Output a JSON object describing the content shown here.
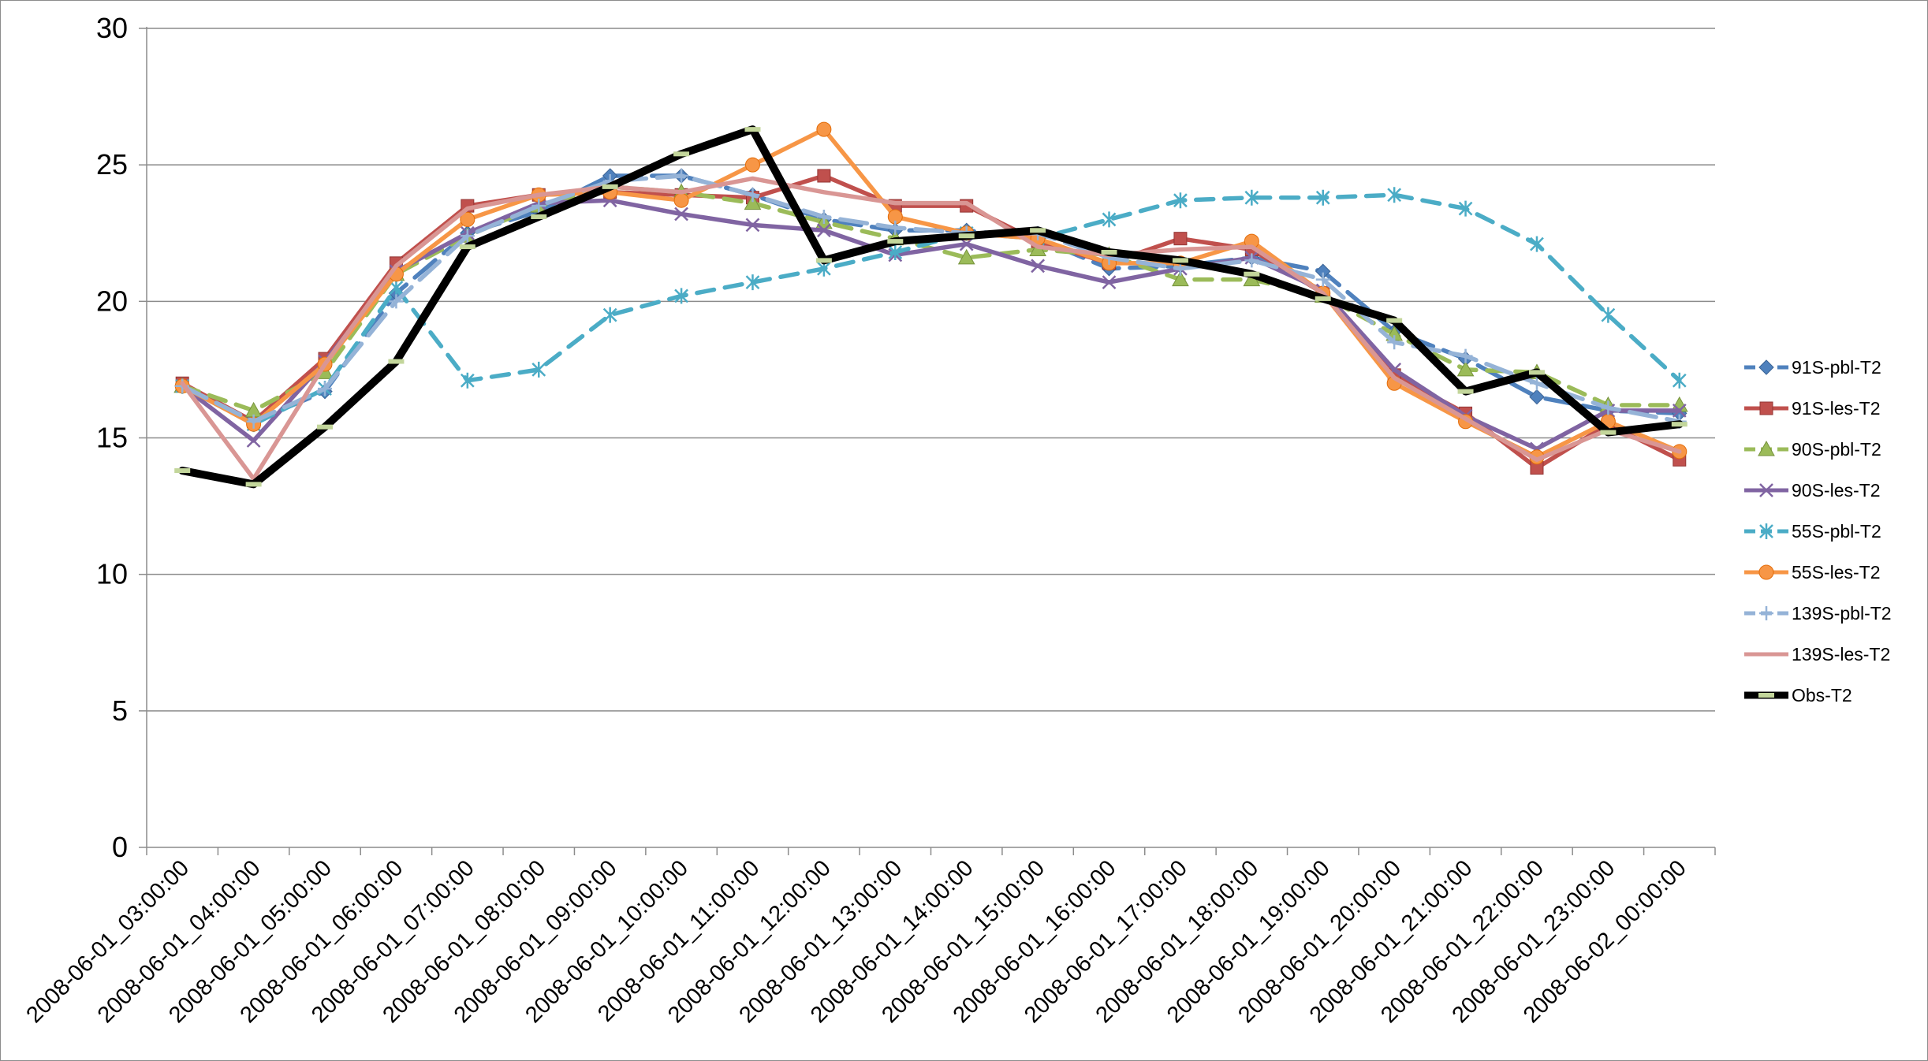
{
  "chart_data": {
    "type": "line",
    "title": "",
    "xlabel": "",
    "ylabel": "",
    "ylim": [
      0,
      30
    ],
    "yticks": [
      0,
      5,
      10,
      15,
      20,
      25,
      30
    ],
    "grid": "horizontal",
    "legend_position": "right",
    "categories": [
      "2008-06-01_03:00:00",
      "2008-06-01_04:00:00",
      "2008-06-01_05:00:00",
      "2008-06-01_06:00:00",
      "2008-06-01_07:00:00",
      "2008-06-01_08:00:00",
      "2008-06-01_09:00:00",
      "2008-06-01_10:00:00",
      "2008-06-01_11:00:00",
      "2008-06-01_12:00:00",
      "2008-06-01_13:00:00",
      "2008-06-01_14:00:00",
      "2008-06-01_15:00:00",
      "2008-06-01_16:00:00",
      "2008-06-01_17:00:00",
      "2008-06-01_18:00:00",
      "2008-06-01_19:00:00",
      "2008-06-01_20:00:00",
      "2008-06-01_21:00:00",
      "2008-06-01_22:00:00",
      "2008-06-01_23:00:00",
      "2008-06-02_00:00:00"
    ],
    "series": [
      {
        "name": "91S-pbl-T2",
        "color": "#4f81bd",
        "marker": "diamond",
        "dash": "long-dash",
        "values": [
          16.9,
          15.6,
          16.7,
          20.3,
          22.5,
          23.3,
          24.6,
          24.6,
          23.9,
          23.0,
          22.6,
          22.6,
          22.3,
          21.2,
          21.3,
          21.6,
          21.1,
          18.9,
          17.9,
          16.5,
          16.0,
          15.9
        ]
      },
      {
        "name": "91S-les-T2",
        "color": "#c0504d",
        "marker": "square",
        "dash": "solid",
        "values": [
          17.0,
          15.6,
          17.9,
          21.4,
          23.5,
          23.9,
          24.0,
          23.9,
          23.8,
          24.6,
          23.5,
          23.5,
          22.2,
          21.4,
          22.3,
          21.9,
          20.3,
          17.3,
          15.9,
          13.9,
          15.5,
          14.2
        ]
      },
      {
        "name": "90S-pbl-T2",
        "color": "#9bbb59",
        "marker": "triangle",
        "dash": "dash",
        "values": [
          16.9,
          16.0,
          17.4,
          21.0,
          22.4,
          23.5,
          24.2,
          24.0,
          23.6,
          22.9,
          22.3,
          21.6,
          21.9,
          21.7,
          20.8,
          20.8,
          20.2,
          18.8,
          17.5,
          17.4,
          16.2,
          16.2
        ]
      },
      {
        "name": "90S-les-T2",
        "color": "#8064a2",
        "marker": "x",
        "dash": "solid",
        "values": [
          16.9,
          14.9,
          17.8,
          21.1,
          22.5,
          23.6,
          23.7,
          23.2,
          22.8,
          22.6,
          21.7,
          22.1,
          21.3,
          20.7,
          21.2,
          21.6,
          20.4,
          17.5,
          15.8,
          14.6,
          16.0,
          16.0
        ]
      },
      {
        "name": "55S-pbl-T2",
        "color": "#4bacc6",
        "marker": "asterisk",
        "dash": "dash",
        "values": [
          16.9,
          15.5,
          16.8,
          20.5,
          17.1,
          17.5,
          19.5,
          20.2,
          20.7,
          21.2,
          21.8,
          22.5,
          22.3,
          23.0,
          23.7,
          23.8,
          23.8,
          23.9,
          23.4,
          22.1,
          19.5,
          17.1
        ]
      },
      {
        "name": "55S-les-T2",
        "color": "#f79646",
        "marker": "circle",
        "dash": "solid",
        "values": [
          16.9,
          15.5,
          17.7,
          21.0,
          23.0,
          23.9,
          24.0,
          23.7,
          25.0,
          26.3,
          23.1,
          22.5,
          22.3,
          21.4,
          21.4,
          22.2,
          20.3,
          17.0,
          15.6,
          14.3,
          15.6,
          14.5
        ]
      },
      {
        "name": "139S-pbl-T2",
        "color": "#95b3d7",
        "marker": "plus",
        "dash": "long-dash",
        "values": [
          16.9,
          15.6,
          16.8,
          20.0,
          22.4,
          23.5,
          24.4,
          24.6,
          23.9,
          23.1,
          22.7,
          22.5,
          22.5,
          21.6,
          21.2,
          21.5,
          20.8,
          18.5,
          18.0,
          17.0,
          16.1,
          15.6
        ]
      },
      {
        "name": "139S-les-T2",
        "color": "#d99694",
        "marker": "none",
        "dash": "solid",
        "values": [
          17.0,
          13.5,
          17.7,
          21.3,
          23.4,
          23.9,
          24.2,
          24.0,
          24.5,
          24.0,
          23.6,
          23.6,
          22.0,
          21.7,
          21.9,
          22.0,
          20.3,
          17.2,
          15.7,
          14.2,
          15.3,
          14.5
        ]
      },
      {
        "name": "Obs-T2",
        "color": "#000000",
        "marker": "dash",
        "dash": "solid",
        "values": [
          13.8,
          13.3,
          15.4,
          17.8,
          22.0,
          23.1,
          24.2,
          25.4,
          26.3,
          21.5,
          22.2,
          22.4,
          22.6,
          21.8,
          21.5,
          21.0,
          20.1,
          19.3,
          16.7,
          17.4,
          15.2,
          15.5
        ]
      }
    ]
  }
}
